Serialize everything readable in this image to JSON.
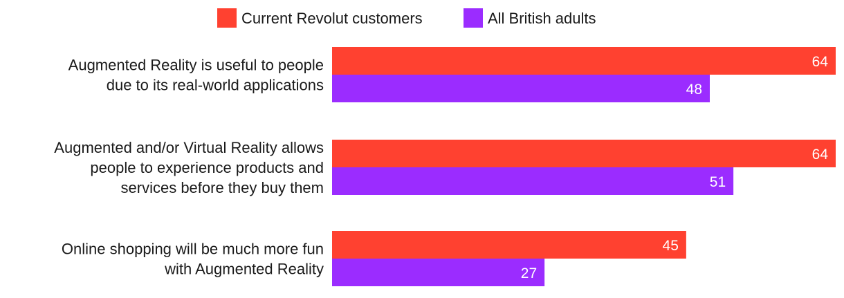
{
  "chart_data": {
    "type": "bar",
    "orientation": "horizontal",
    "categories": [
      [
        "Augmented Reality is useful to people",
        "due to its real-world applications"
      ],
      [
        "Augmented and/or Virtual Reality allows",
        "people to experience products and",
        "services before they buy them"
      ],
      [
        "Online shopping will be much more fun",
        "with Augmented Reality"
      ]
    ],
    "series": [
      {
        "name": "Current Revolut customers",
        "color": "#ff4130",
        "values": [
          64,
          64,
          45
        ]
      },
      {
        "name": "All British adults",
        "color": "#9b2cff",
        "values": [
          48,
          51,
          27
        ]
      }
    ],
    "xlim": [
      0,
      64
    ],
    "grid": false,
    "legend_position": "top-center",
    "data_labels": true
  }
}
